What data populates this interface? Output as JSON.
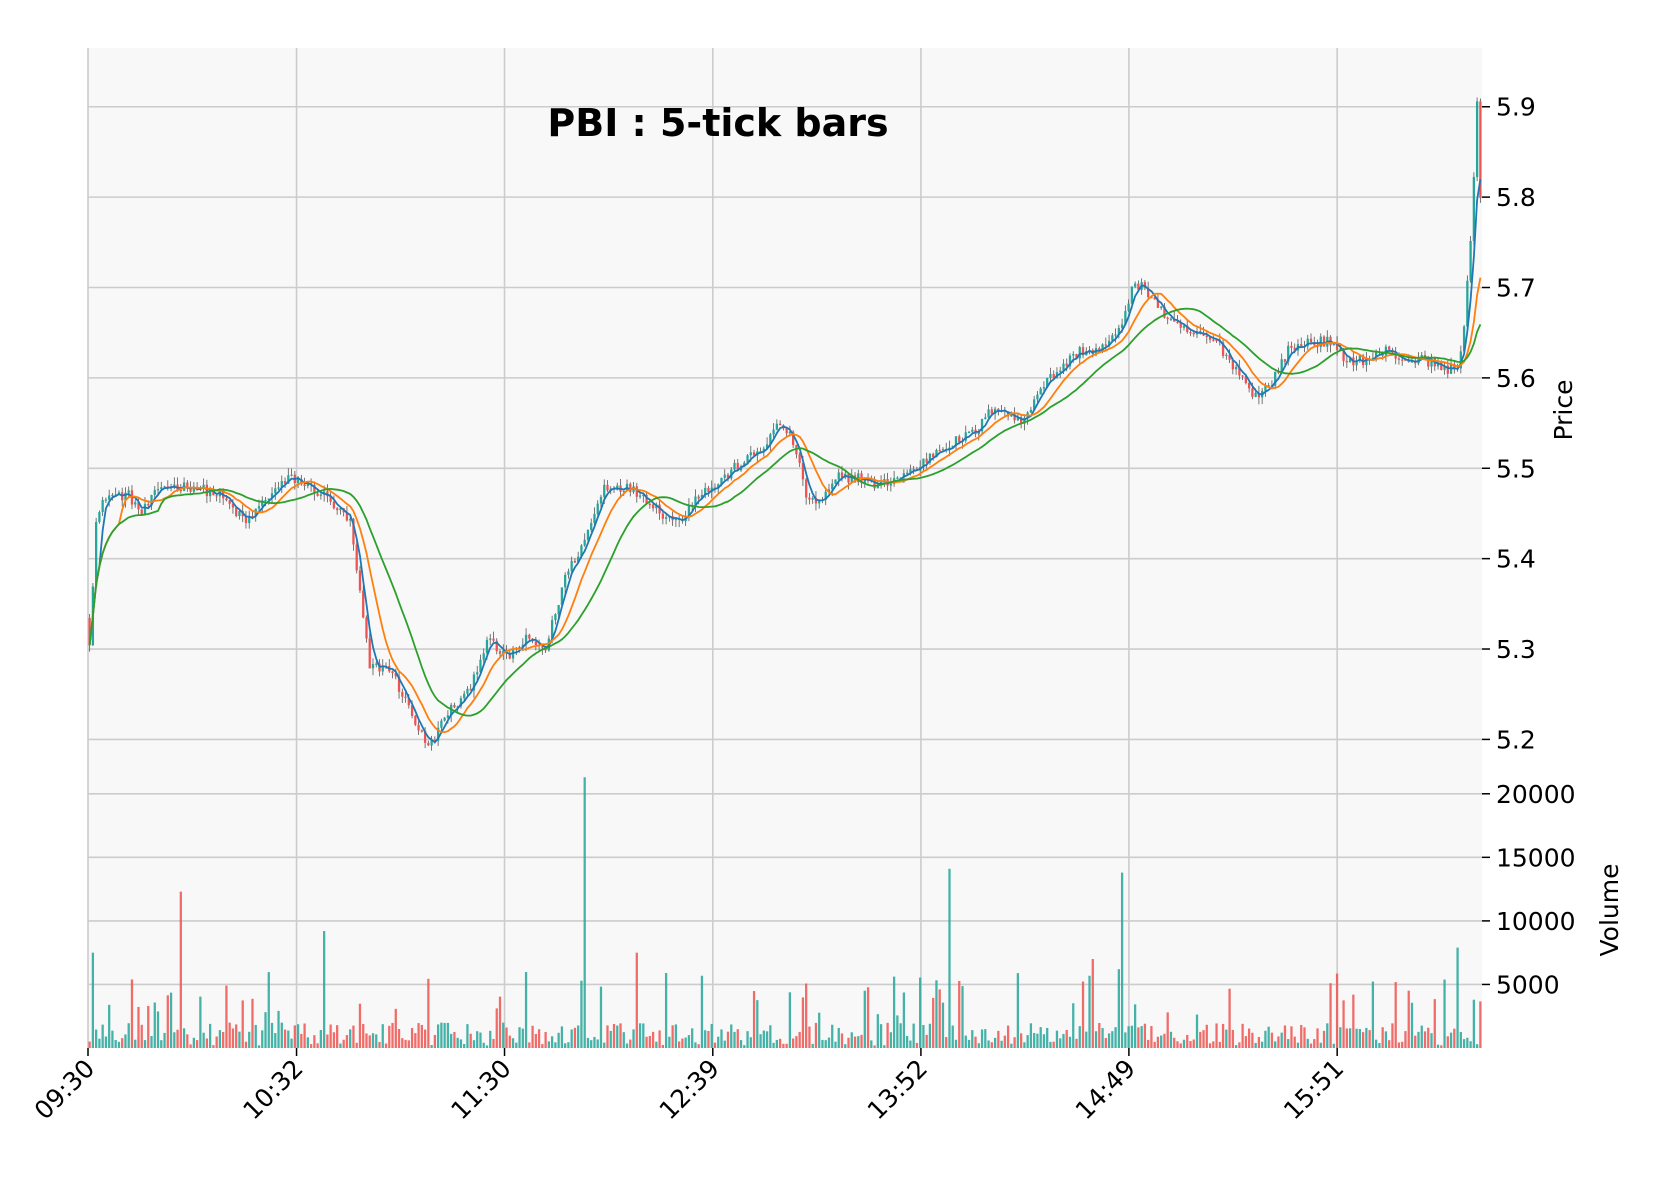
{
  "chart_data": {
    "type": "candlestick",
    "title": "PBI : 5-tick bars",
    "price_axis": {
      "label": "Price",
      "ylim": [
        5.175,
        5.965
      ],
      "ticks": [
        "5.2",
        "5.3",
        "5.4",
        "5.5",
        "5.6",
        "5.7",
        "5.8",
        "5.9"
      ]
    },
    "volume_axis": {
      "label": "Volume",
      "ylim": [
        0,
        22500
      ],
      "ticks": [
        "5000",
        "10000",
        "15000",
        "20000"
      ]
    },
    "x_ticks": [
      "09:30",
      "10:32",
      "11:30",
      "12:39",
      "13:52",
      "14:49",
      "15:51"
    ],
    "grid": true,
    "colors": {
      "up": "#26a69a",
      "down": "#ef5350",
      "ma_short": "#1f77b4",
      "ma_medium": "#ff7f0e",
      "ma_long": "#2ca02c",
      "panel_bg": "#f8f8f8",
      "grid": "#cccccc"
    },
    "price_keypoints": [
      [
        0,
        5.31
      ],
      [
        2,
        5.44
      ],
      [
        5,
        5.47
      ],
      [
        12,
        5.47
      ],
      [
        16,
        5.45
      ],
      [
        22,
        5.48
      ],
      [
        32,
        5.48
      ],
      [
        40,
        5.47
      ],
      [
        48,
        5.44
      ],
      [
        55,
        5.47
      ],
      [
        62,
        5.49
      ],
      [
        72,
        5.47
      ],
      [
        80,
        5.44
      ],
      [
        86,
        5.28
      ],
      [
        92,
        5.28
      ],
      [
        100,
        5.22
      ],
      [
        104,
        5.19
      ],
      [
        110,
        5.23
      ],
      [
        116,
        5.25
      ],
      [
        122,
        5.31
      ],
      [
        128,
        5.29
      ],
      [
        134,
        5.31
      ],
      [
        140,
        5.3
      ],
      [
        146,
        5.38
      ],
      [
        152,
        5.42
      ],
      [
        158,
        5.48
      ],
      [
        164,
        5.48
      ],
      [
        170,
        5.47
      ],
      [
        176,
        5.45
      ],
      [
        181,
        5.44
      ],
      [
        186,
        5.47
      ],
      [
        192,
        5.48
      ],
      [
        198,
        5.5
      ],
      [
        206,
        5.52
      ],
      [
        212,
        5.55
      ],
      [
        216,
        5.53
      ],
      [
        220,
        5.47
      ],
      [
        224,
        5.46
      ],
      [
        230,
        5.49
      ],
      [
        236,
        5.49
      ],
      [
        242,
        5.48
      ],
      [
        248,
        5.49
      ],
      [
        254,
        5.5
      ],
      [
        260,
        5.52
      ],
      [
        266,
        5.53
      ],
      [
        272,
        5.54
      ],
      [
        278,
        5.57
      ],
      [
        286,
        5.55
      ],
      [
        292,
        5.59
      ],
      [
        298,
        5.61
      ],
      [
        304,
        5.63
      ],
      [
        310,
        5.63
      ],
      [
        316,
        5.65
      ],
      [
        320,
        5.7
      ],
      [
        324,
        5.7
      ],
      [
        328,
        5.68
      ],
      [
        332,
        5.66
      ],
      [
        338,
        5.65
      ],
      [
        346,
        5.64
      ],
      [
        352,
        5.61
      ],
      [
        358,
        5.58
      ],
      [
        362,
        5.59
      ],
      [
        368,
        5.63
      ],
      [
        374,
        5.64
      ],
      [
        380,
        5.64
      ],
      [
        386,
        5.62
      ],
      [
        392,
        5.62
      ],
      [
        398,
        5.63
      ],
      [
        404,
        5.62
      ],
      [
        410,
        5.62
      ],
      [
        416,
        5.61
      ],
      [
        420,
        5.61
      ],
      [
        422,
        5.66
      ],
      [
        424,
        5.75
      ],
      [
        426,
        5.9
      ],
      [
        427,
        5.8
      ]
    ],
    "volume_spikes": [
      {
        "bar": 1,
        "value": 7500
      },
      {
        "bar": 28,
        "value": 12300
      },
      {
        "bar": 72,
        "value": 9200
      },
      {
        "bar": 152,
        "value": 21300
      },
      {
        "bar": 168,
        "value": 7500
      },
      {
        "bar": 264,
        "value": 14100
      },
      {
        "bar": 308,
        "value": 7000
      },
      {
        "bar": 316,
        "value": 6200
      },
      {
        "bar": 317,
        "value": 13800
      },
      {
        "bar": 420,
        "value": 7900
      }
    ],
    "bar_count": 428
  }
}
